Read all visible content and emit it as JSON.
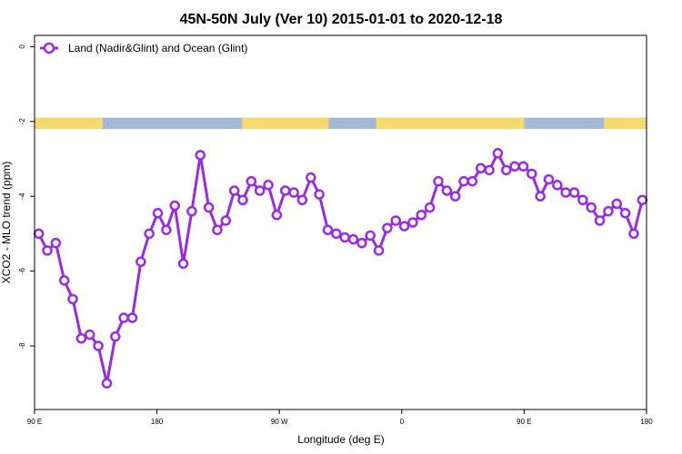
{
  "chart_data": {
    "type": "line",
    "title": "45N-50N July (Ver 10)   2015-01-01 to 2020-12-18",
    "xlabel": "Longitude (deg E)",
    "ylabel": "XCO2 - MLO trend (ppm)",
    "xlim": [
      90,
      450
    ],
    "ylim": [
      -9.7,
      0.3
    ],
    "x_ticks": [
      {
        "value": 90,
        "label": "90 E"
      },
      {
        "value": 162,
        "label": "180"
      },
      {
        "value": 234,
        "label": "90 W"
      },
      {
        "value": 306,
        "label": "0"
      },
      {
        "value": 378,
        "label": "90 E"
      },
      {
        "value": 450,
        "label": "180"
      }
    ],
    "y_ticks": [
      {
        "value": 0,
        "label": "0"
      },
      {
        "value": -2,
        "label": "-2"
      },
      {
        "value": -4,
        "label": "-4"
      },
      {
        "value": -6,
        "label": "-6"
      },
      {
        "value": -8,
        "label": "-8"
      }
    ],
    "legend": {
      "position": "top-left"
    },
    "colors": {
      "series": "#9a2be2",
      "land": "#f7d96e",
      "ocean": "#a3b8d8"
    },
    "land_ocean_strip": {
      "y_top": -1.9,
      "y_bottom": -2.2,
      "land_segments": [
        [
          90,
          130
        ],
        [
          212,
          263
        ],
        [
          291,
          378
        ],
        [
          425,
          450
        ]
      ]
    },
    "series": [
      {
        "name": "Land (Nadir&Glint) and Ocean (Glint)",
        "x": [
          92.5,
          97.5,
          102.5,
          107.5,
          112.5,
          117.5,
          122.5,
          127.5,
          132.5,
          137.5,
          142.5,
          147.5,
          152.5,
          157.5,
          162.5,
          167.5,
          172.5,
          177.5,
          182.5,
          187.5,
          192.5,
          197.5,
          202.5,
          207.5,
          212.5,
          217.5,
          222.5,
          227.5,
          232.5,
          237.5,
          242.5,
          247.5,
          252.5,
          257.5,
          262.5,
          267.5,
          272.5,
          277.5,
          282.5,
          287.5,
          292.5,
          297.5,
          302.5,
          307.5,
          312.5,
          317.5,
          322.5,
          327.5,
          332.5,
          337.5,
          342.5,
          347.5,
          352.5,
          357.5,
          362.5,
          367.5,
          372.5,
          377.5,
          382.5,
          387.5,
          392.5,
          397.5,
          402.5,
          407.5,
          412.5,
          417.5,
          422.5,
          427.5,
          432.5,
          437.5,
          442.5,
          447.5
        ],
        "values": [
          -5.0,
          -5.45,
          -5.25,
          -6.25,
          -6.75,
          -7.8,
          -7.7,
          -8.0,
          -9.0,
          -7.75,
          -7.25,
          -7.25,
          -5.75,
          -5.0,
          -4.45,
          -4.9,
          -4.25,
          -5.8,
          -4.4,
          -2.9,
          -4.3,
          -4.9,
          -4.65,
          -3.85,
          -4.1,
          -3.6,
          -3.85,
          -3.7,
          -4.5,
          -3.85,
          -3.9,
          -4.1,
          -3.5,
          -3.95,
          -4.9,
          -5.0,
          -5.1,
          -5.15,
          -5.25,
          -5.05,
          -5.45,
          -4.85,
          -4.65,
          -4.8,
          -4.7,
          -4.5,
          -4.3,
          -3.6,
          -3.85,
          -4.0,
          -3.6,
          -3.6,
          -3.25,
          -3.3,
          -2.85,
          -3.3,
          -3.2,
          -3.2,
          -3.4,
          -4.0,
          -3.55,
          -3.7,
          -3.9,
          -3.9,
          -4.1,
          -4.3,
          -4.65,
          -4.4,
          -4.2,
          -4.45,
          -5.0,
          -4.1
        ]
      }
    ]
  }
}
